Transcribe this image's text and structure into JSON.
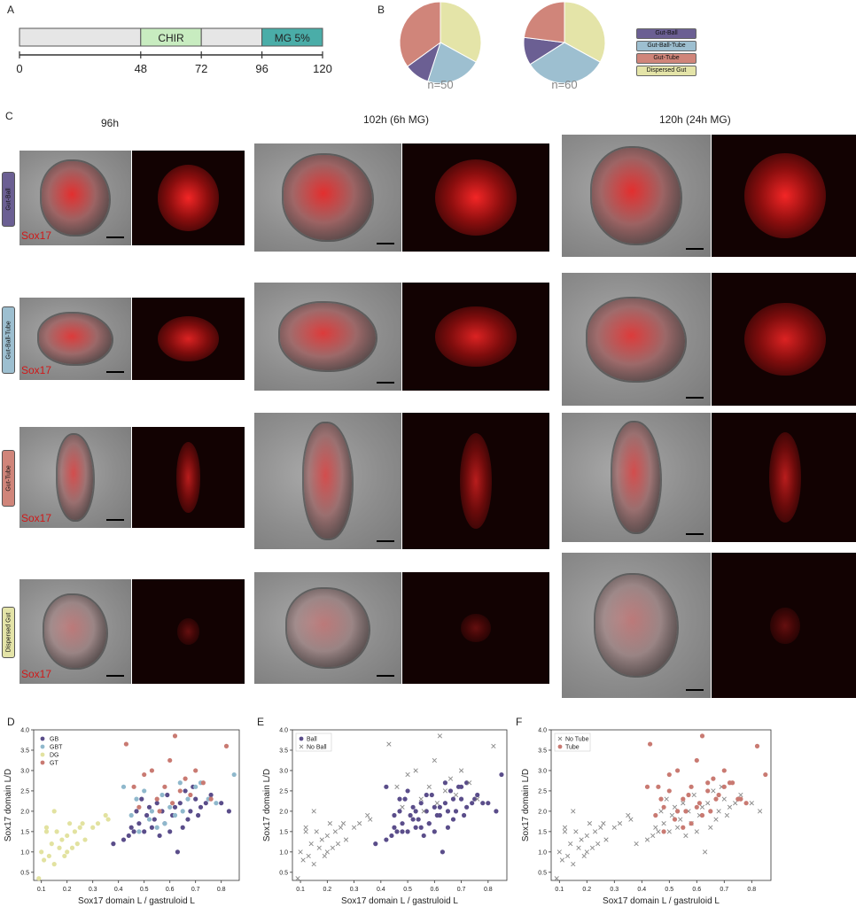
{
  "panels": {
    "A": "A",
    "B": "B",
    "C": "C",
    "D": "D",
    "E": "E",
    "F": "F"
  },
  "timeline": {
    "segments": [
      {
        "label": "",
        "start": 0,
        "end": 48,
        "color": "#e6e6e6"
      },
      {
        "label": "CHIR",
        "start": 48,
        "end": 72,
        "color": "#c8ecc0"
      },
      {
        "label": "",
        "start": 72,
        "end": 96,
        "color": "#e6e6e6"
      },
      {
        "label": "MG 5%",
        "start": 96,
        "end": 120,
        "color": "#4aada8"
      }
    ],
    "ticks": [
      "0",
      "48",
      "72",
      "96",
      "120"
    ]
  },
  "pies": [
    {
      "n_label": "n=50",
      "slices": [
        {
          "cat": "Dispersed Gut",
          "value": 33
        },
        {
          "cat": "Gut-Ball-Tube",
          "value": 22
        },
        {
          "cat": "Gut-Ball",
          "value": 10
        },
        {
          "cat": "Gut-Tube",
          "value": 35
        }
      ]
    },
    {
      "n_label": "n=60",
      "slices": [
        {
          "cat": "Dispersed Gut",
          "value": 33
        },
        {
          "cat": "Gut-Ball-Tube",
          "value": 33
        },
        {
          "cat": "Gut-Ball",
          "value": 11
        },
        {
          "cat": "Gut-Tube",
          "value": 23
        }
      ]
    }
  ],
  "legend": [
    {
      "label": "Gut-Ball",
      "color": "#6b5f93"
    },
    {
      "label": "Gut-Ball-Tube",
      "color": "#9dbfd0"
    },
    {
      "label": "Gut-Tube",
      "color": "#d0857a"
    },
    {
      "label": "Dispersed Gut",
      "color": "#e4e4a8"
    }
  ],
  "columns": [
    "96h",
    "102h (6h MG)",
    "120h (24h MG)"
  ],
  "rows": [
    {
      "label": "Gut-Ball",
      "color": "#6b5f93"
    },
    {
      "label": "Gut-Ball-Tube",
      "color": "#9dbfd0"
    },
    {
      "label": "Gut-Tube",
      "color": "#d0857a"
    },
    {
      "label": "Dispersed Gut",
      "color": "#e4e4a8"
    }
  ],
  "sox_label": "Sox17",
  "scatter": {
    "xlabel": "Sox17 domain L / gastruloid L",
    "ylabel": "Sox17 domain L/D",
    "xticks": [
      "0.1",
      "0.2",
      "0.3",
      "0.4",
      "0.5",
      "0.6",
      "0.7",
      "0.8"
    ],
    "yticks": [
      "0.5",
      "1.0",
      "1.5",
      "2.0",
      "2.5",
      "3.0",
      "3.5",
      "4.0"
    ],
    "legendD": [
      "GB",
      "GBT",
      "DG",
      "GT"
    ],
    "legendE": [
      "Ball",
      "No Ball"
    ],
    "legendF": [
      "No Tube",
      "Tube"
    ]
  },
  "chart_data": [
    {
      "type": "bar",
      "title": "",
      "categories": [
        "0-48",
        "48-72",
        "72-96",
        "96-120"
      ],
      "values": [
        48,
        24,
        24,
        24
      ],
      "labels": [
        "",
        "CHIR",
        "",
        "MG 5%"
      ],
      "xticks": [
        0,
        48,
        72,
        96,
        120
      ]
    },
    {
      "type": "pie",
      "title": "n=50",
      "categories": [
        "Dispersed Gut",
        "Gut-Ball-Tube",
        "Gut-Ball",
        "Gut-Tube"
      ],
      "values": [
        33,
        22,
        10,
        35
      ]
    },
    {
      "type": "pie",
      "title": "n=60",
      "categories": [
        "Dispersed Gut",
        "Gut-Ball-Tube",
        "Gut-Ball",
        "Gut-Tube"
      ],
      "values": [
        33,
        33,
        11,
        23
      ]
    },
    {
      "type": "scatter",
      "xlabel": "Sox17 domain L / gastruloid L",
      "ylabel": "Sox17 domain L/D",
      "xlim": [
        0.07,
        0.87
      ],
      "ylim": [
        0.3,
        4.0
      ],
      "series": [
        {
          "name": "GB",
          "color": "#5a4d8a",
          "points": [
            [
              0.42,
              1.3
            ],
            [
              0.45,
              1.6
            ],
            [
              0.47,
              2.0
            ],
            [
              0.48,
              1.7
            ],
            [
              0.49,
              2.3
            ],
            [
              0.5,
              1.5
            ],
            [
              0.51,
              1.9
            ],
            [
              0.52,
              2.1
            ],
            [
              0.53,
              1.6
            ],
            [
              0.54,
              1.8
            ],
            [
              0.55,
              2.2
            ],
            [
              0.56,
              1.4
            ],
            [
              0.57,
              2.0
            ],
            [
              0.58,
              1.7
            ],
            [
              0.59,
              2.4
            ],
            [
              0.6,
              1.5
            ],
            [
              0.61,
              1.9
            ],
            [
              0.62,
              2.1
            ],
            [
              0.63,
              1.0
            ],
            [
              0.64,
              2.2
            ],
            [
              0.65,
              1.6
            ],
            [
              0.66,
              2.5
            ],
            [
              0.67,
              1.8
            ],
            [
              0.68,
              2.0
            ],
            [
              0.69,
              2.6
            ],
            [
              0.7,
              2.3
            ],
            [
              0.71,
              1.9
            ],
            [
              0.72,
              2.1
            ],
            [
              0.74,
              2.2
            ],
            [
              0.76,
              2.4
            ],
            [
              0.8,
              2.2
            ],
            [
              0.83,
              2.0
            ],
            [
              0.38,
              1.2
            ],
            [
              0.44,
              1.4
            ],
            [
              0.46,
              1.5
            ]
          ]
        },
        {
          "name": "GBT",
          "color": "#8fb8cc",
          "points": [
            [
              0.42,
              2.6
            ],
            [
              0.45,
              1.9
            ],
            [
              0.47,
              2.3
            ],
            [
              0.5,
              2.5
            ],
            [
              0.52,
              1.8
            ],
            [
              0.55,
              1.6
            ],
            [
              0.57,
              2.4
            ],
            [
              0.6,
              2.1
            ],
            [
              0.62,
              1.9
            ],
            [
              0.64,
              2.7
            ],
            [
              0.67,
              2.3
            ],
            [
              0.7,
              2.6
            ],
            [
              0.72,
              2.7
            ],
            [
              0.75,
              2.3
            ],
            [
              0.78,
              2.2
            ],
            [
              0.85,
              2.9
            ],
            [
              0.48,
              1.5
            ],
            [
              0.53,
              2.0
            ],
            [
              0.58,
              1.7
            ],
            [
              0.65,
              2.0
            ]
          ]
        },
        {
          "name": "DG",
          "color": "#e2e2a0",
          "points": [
            [
              0.09,
              0.35
            ],
            [
              0.1,
              1.0
            ],
            [
              0.11,
              0.8
            ],
            [
              0.12,
              1.6
            ],
            [
              0.13,
              0.9
            ],
            [
              0.14,
              1.2
            ],
            [
              0.15,
              0.7
            ],
            [
              0.16,
              1.5
            ],
            [
              0.17,
              1.1
            ],
            [
              0.18,
              1.3
            ],
            [
              0.19,
              0.9
            ],
            [
              0.2,
              1.4
            ],
            [
              0.21,
              1.7
            ],
            [
              0.22,
              1.1
            ],
            [
              0.23,
              1.5
            ],
            [
              0.24,
              1.2
            ],
            [
              0.25,
              1.6
            ],
            [
              0.26,
              1.7
            ],
            [
              0.27,
              1.3
            ],
            [
              0.3,
              1.6
            ],
            [
              0.32,
              1.7
            ],
            [
              0.35,
              1.9
            ],
            [
              0.36,
              1.8
            ],
            [
              0.12,
              1.5
            ],
            [
              0.2,
              1.0
            ],
            [
              0.15,
              2.0
            ]
          ]
        },
        {
          "name": "GT",
          "color": "#c97a72",
          "points": [
            [
              0.43,
              3.65
            ],
            [
              0.46,
              2.6
            ],
            [
              0.48,
              2.1
            ],
            [
              0.5,
              2.9
            ],
            [
              0.53,
              3.0
            ],
            [
              0.55,
              2.3
            ],
            [
              0.58,
              2.6
            ],
            [
              0.6,
              3.25
            ],
            [
              0.62,
              3.85
            ],
            [
              0.64,
              2.5
            ],
            [
              0.66,
              2.8
            ],
            [
              0.68,
              2.4
            ],
            [
              0.7,
              3.0
            ],
            [
              0.73,
              2.7
            ],
            [
              0.76,
              2.3
            ],
            [
              0.82,
              3.6
            ],
            [
              0.56,
              2.0
            ],
            [
              0.61,
              2.2
            ]
          ]
        }
      ]
    }
  ]
}
